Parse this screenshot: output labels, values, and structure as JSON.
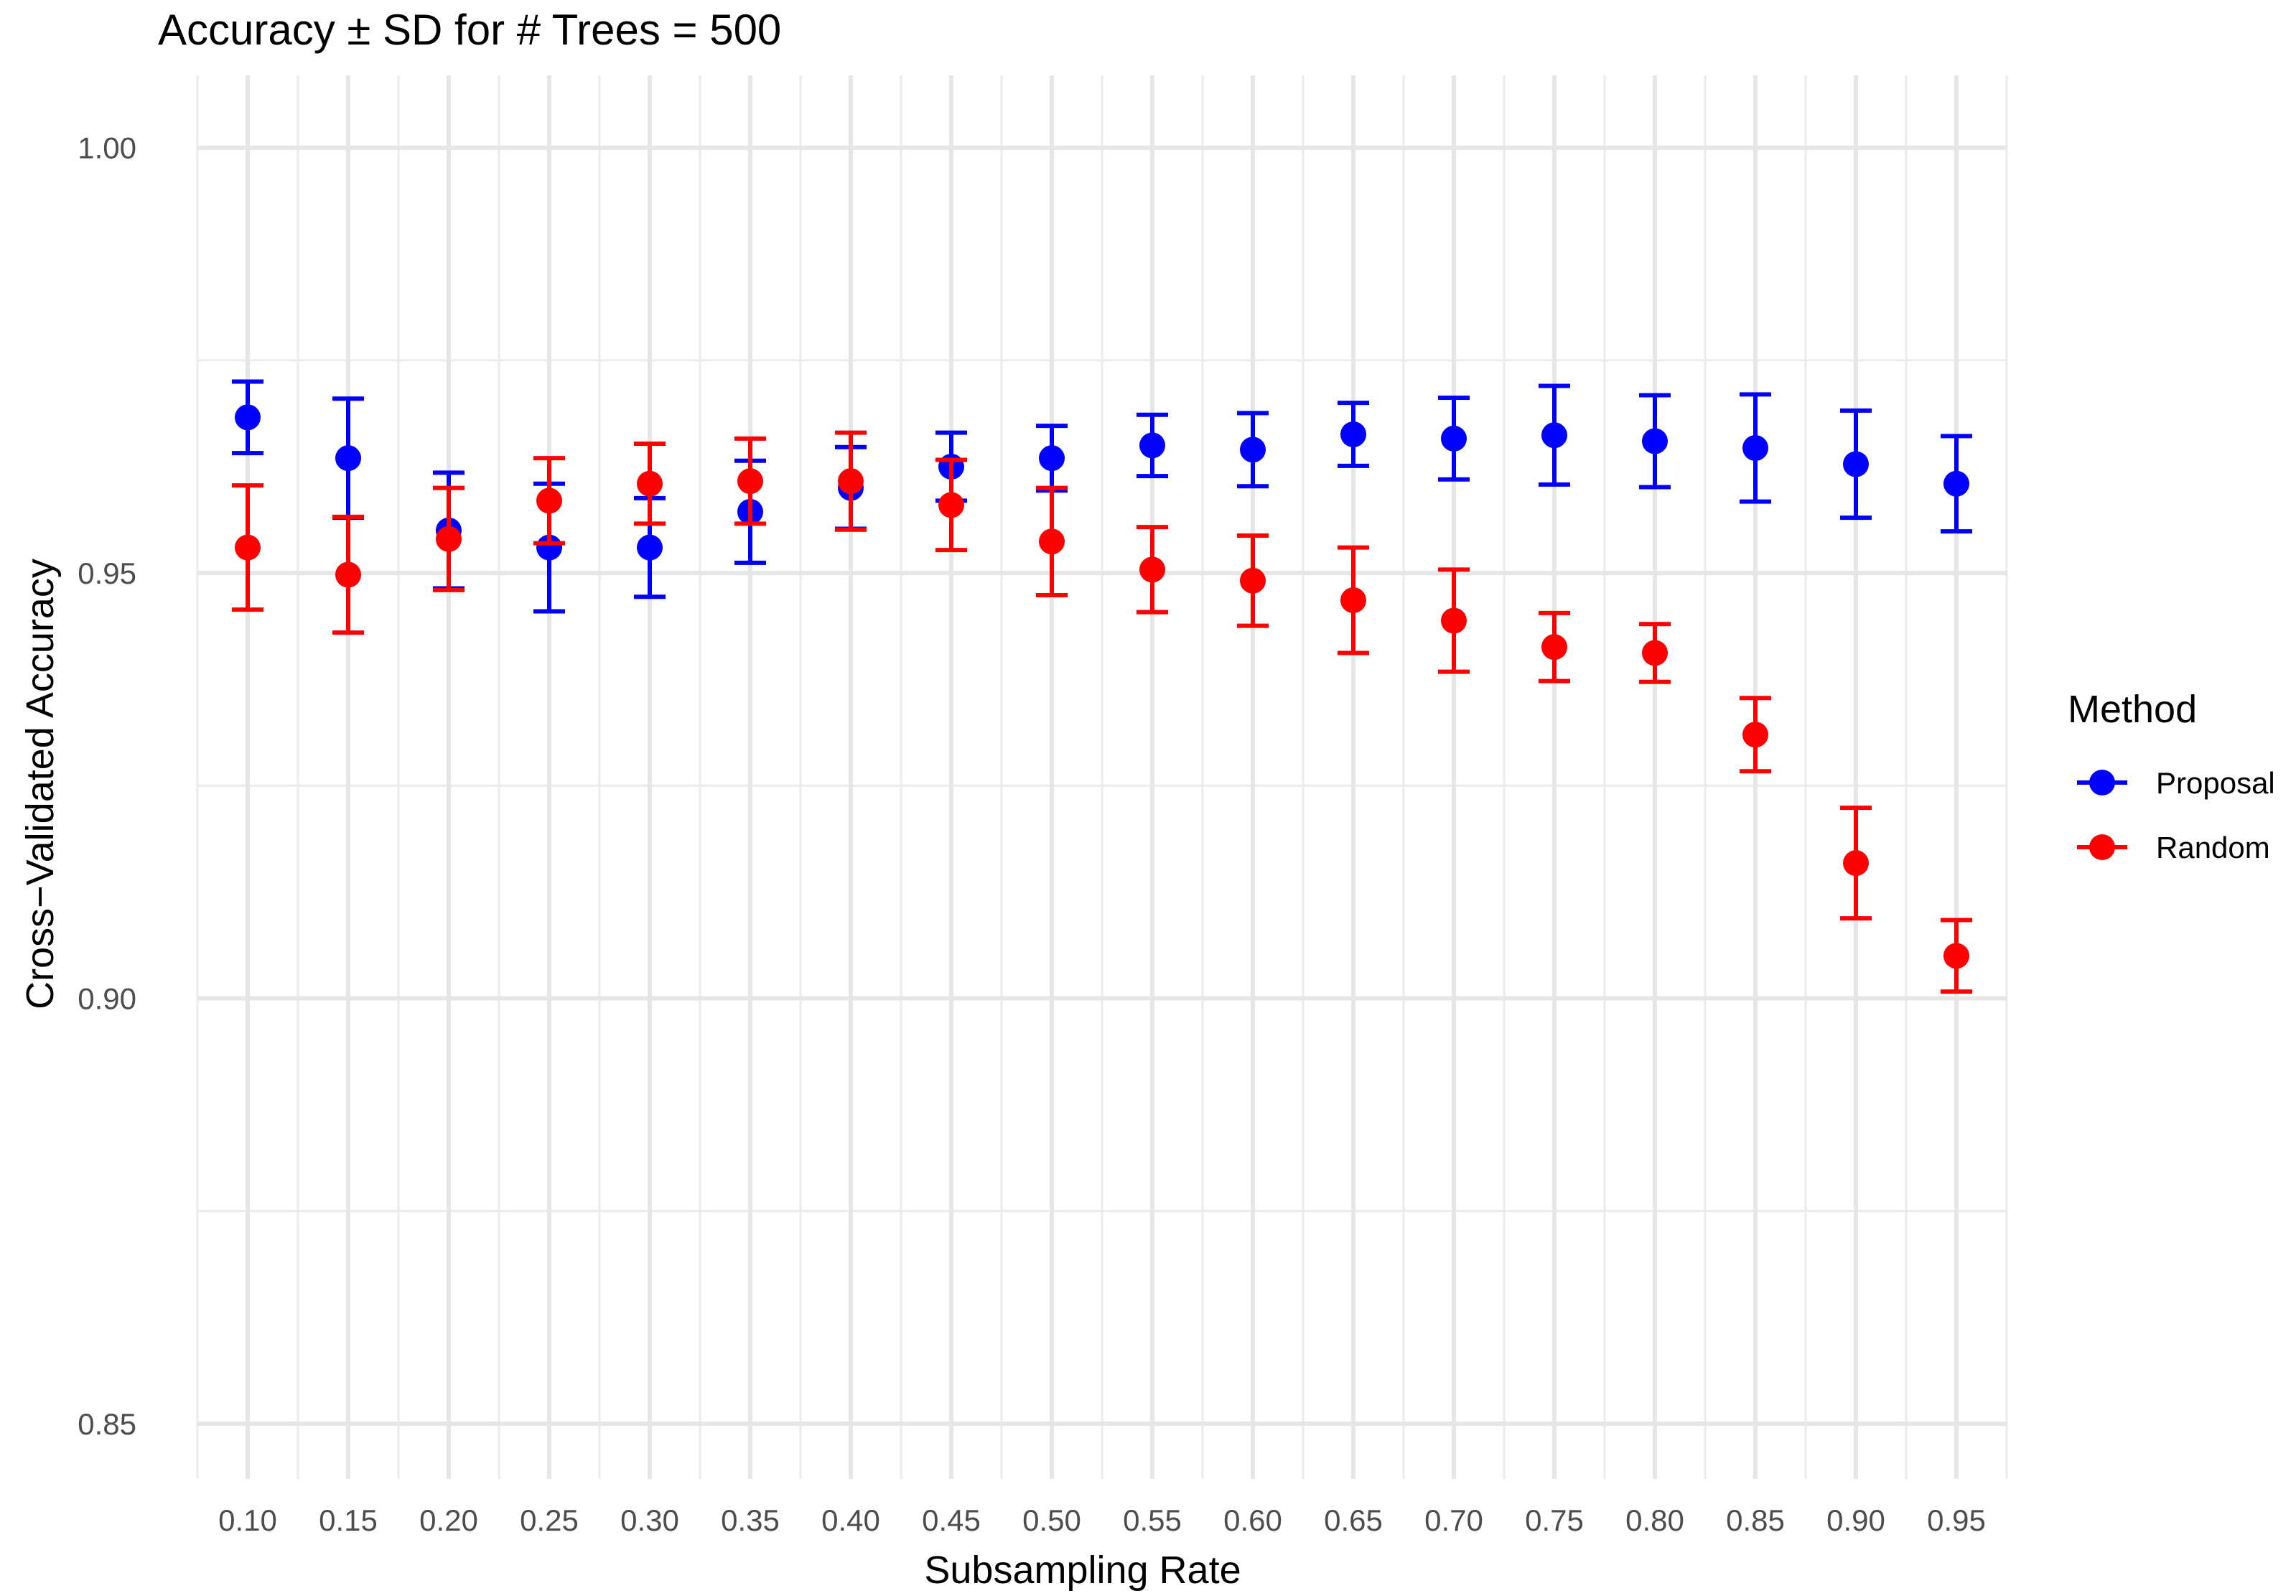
{
  "chart_data": {
    "type": "scatter",
    "title": "Accuracy ± SD for # Trees = 500",
    "xlabel": "Subsampling Rate",
    "ylabel": "Cross−Validated Accuracy",
    "categories": [
      "0.10",
      "0.15",
      "0.20",
      "0.25",
      "0.30",
      "0.35",
      "0.40",
      "0.45",
      "0.50",
      "0.55",
      "0.60",
      "0.65",
      "0.70",
      "0.75",
      "0.80",
      "0.85",
      "0.90",
      "0.95"
    ],
    "ylim": [
      0.8435,
      1.0085
    ],
    "y_ticks": [
      0.85,
      0.9,
      0.95,
      1.0
    ],
    "y_tick_labels": [
      "0.85",
      "0.90",
      "0.95",
      "1.00"
    ],
    "grid": true,
    "legend": {
      "title": "Method",
      "position": "right"
    },
    "series": [
      {
        "name": "Proposal",
        "color": "#0000ff",
        "values": [
          0.9683,
          0.9635,
          0.955,
          0.953,
          0.953,
          0.9572,
          0.96,
          0.9625,
          0.9635,
          0.965,
          0.9645,
          0.9663,
          0.9658,
          0.9662,
          0.9655,
          0.9647,
          0.9628,
          0.9605
        ],
        "sd": [
          0.0042,
          0.007,
          0.0068,
          0.0075,
          0.0058,
          0.006,
          0.0048,
          0.004,
          0.0038,
          0.0036,
          0.0043,
          0.0037,
          0.0048,
          0.0058,
          0.0054,
          0.0063,
          0.0063,
          0.0056
        ]
      },
      {
        "name": "Random",
        "color": "#ff0000",
        "values": [
          0.953,
          0.9498,
          0.954,
          0.9585,
          0.9605,
          0.9608,
          0.9608,
          0.958,
          0.9537,
          0.9504,
          0.9491,
          0.9468,
          0.9444,
          0.9413,
          0.9406,
          0.931,
          0.9159,
          0.905
        ],
        "sd": [
          0.0073,
          0.0068,
          0.006,
          0.005,
          0.0047,
          0.005,
          0.0057,
          0.0053,
          0.0063,
          0.005,
          0.0053,
          0.0062,
          0.006,
          0.004,
          0.0034,
          0.0043,
          0.0065,
          0.0042
        ]
      }
    ]
  }
}
